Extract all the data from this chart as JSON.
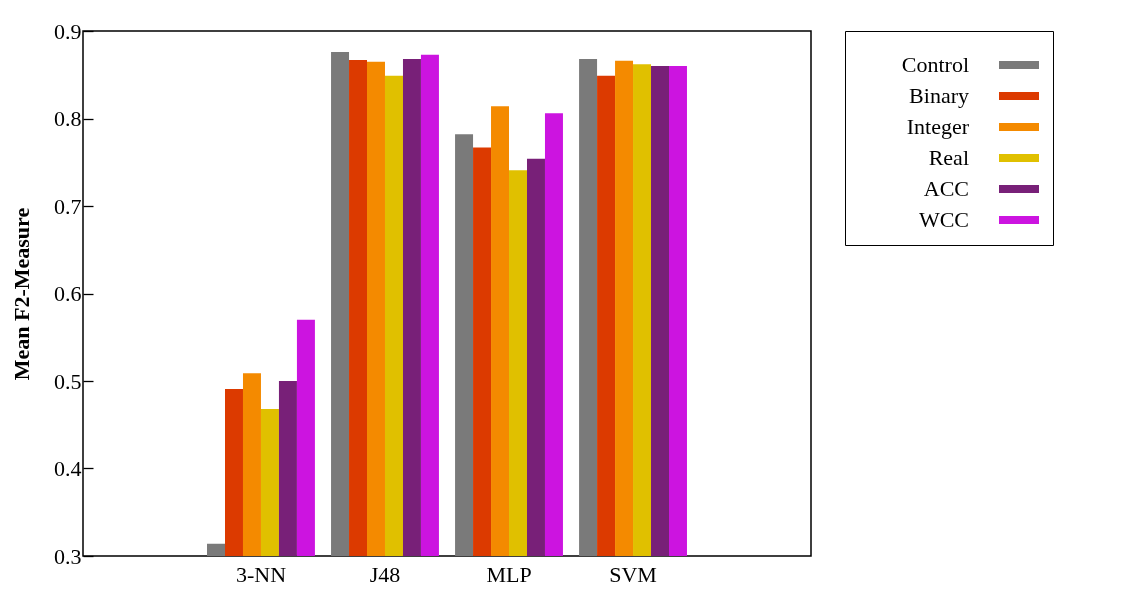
{
  "chart_data": {
    "type": "bar",
    "ylabel": "Mean F2-Measure",
    "categories": [
      "3-NN",
      "J48",
      "MLP",
      "SVM"
    ],
    "series": [
      {
        "name": "Control",
        "color": "#7a7a7a",
        "values": [
          0.314,
          0.876,
          0.782,
          0.868
        ]
      },
      {
        "name": "Binary",
        "color": "#dc3a00",
        "values": [
          0.491,
          0.867,
          0.767,
          0.849
        ]
      },
      {
        "name": "Integer",
        "color": "#f48a00",
        "values": [
          0.509,
          0.865,
          0.814,
          0.866
        ]
      },
      {
        "name": "Real",
        "color": "#e0c000",
        "values": [
          0.468,
          0.849,
          0.741,
          0.862
        ]
      },
      {
        "name": "ACC",
        "color": "#782078",
        "values": [
          0.5,
          0.868,
          0.754,
          0.86
        ]
      },
      {
        "name": "WCC",
        "color": "#cc14e0",
        "values": [
          0.57,
          0.873,
          0.806,
          0.86
        ]
      }
    ],
    "ylim": [
      0.3,
      0.9
    ],
    "yticks": [
      0.3,
      0.4,
      0.5,
      0.6,
      0.7,
      0.8,
      0.9
    ],
    "grid": false,
    "legend": "right"
  }
}
